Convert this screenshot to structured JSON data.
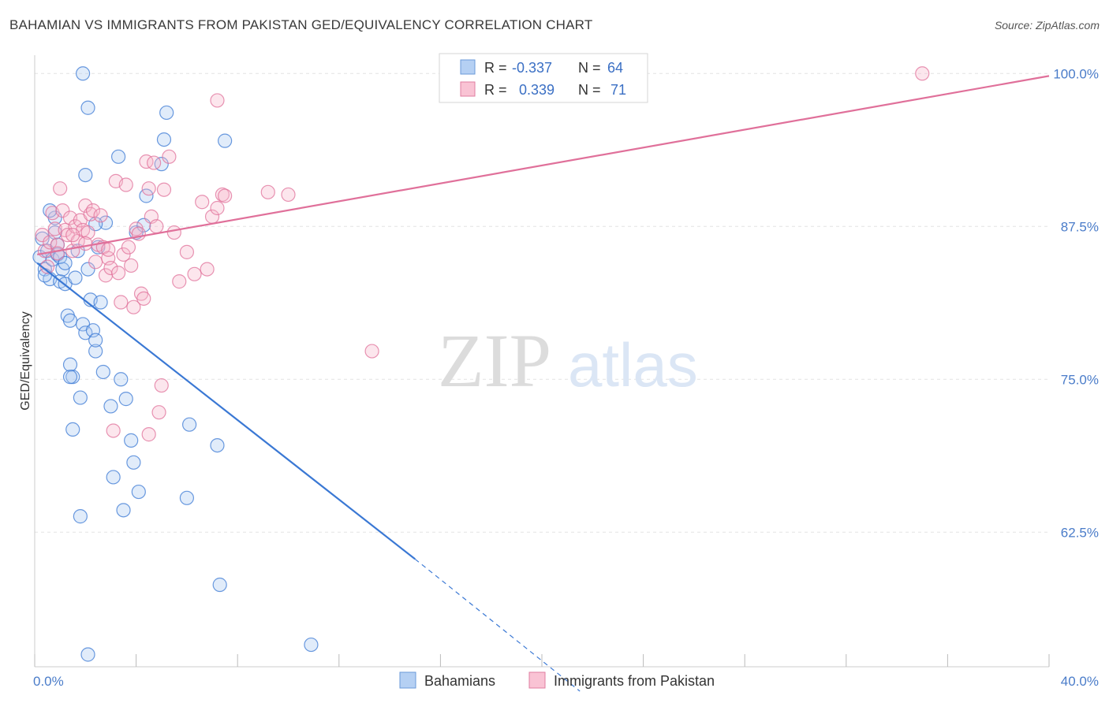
{
  "title": "BAHAMIAN VS IMMIGRANTS FROM PAKISTAN GED/EQUIVALENCY CORRELATION CHART",
  "source": "Source: ZipAtlas.com",
  "watermark": {
    "zip": "ZIP",
    "atlas": "atlas"
  },
  "legend_top": {
    "rows": [
      {
        "r_label": "R =",
        "r_value": "-0.337",
        "n_label": "N =",
        "n_value": "64"
      },
      {
        "r_label": "R =",
        "r_value": "0.339",
        "n_label": "N =",
        "n_value": "71"
      }
    ]
  },
  "legend_bottom": [
    "Bahamians",
    "Immigrants from Pakistan"
  ],
  "chart_data": {
    "type": "scatter",
    "ylabel": "GED/Equivalency",
    "xlabel": "",
    "xlim": [
      0,
      40
    ],
    "ylim": [
      51.5,
      101.5
    ],
    "x_tick_labels": [
      {
        "value": 0,
        "label": "0.0%"
      },
      {
        "value": 40,
        "label": "40.0%"
      }
    ],
    "y_tick_labels": [
      {
        "value": 62.5,
        "label": "62.5%"
      },
      {
        "value": 75.0,
        "label": "75.0%"
      },
      {
        "value": 87.5,
        "label": "87.5%"
      },
      {
        "value": 100.0,
        "label": "100.0%"
      }
    ],
    "colors": {
      "bahamians": "#3a78d4",
      "bahamians_fill": "#a9c8f0",
      "pakistan": "#e0709a",
      "pakistan_fill": "#f7b8cc"
    },
    "series": [
      {
        "name": "Bahamians",
        "trend": {
          "x": [
            0.1,
            15.0
          ],
          "y": [
            84.5,
            60.3
          ],
          "dashed_to": [
            21.5,
            49.5
          ]
        },
        "points": [
          [
            0.2,
            85.0
          ],
          [
            0.3,
            86.5
          ],
          [
            0.4,
            84.0
          ],
          [
            0.5,
            85.5
          ],
          [
            0.6,
            83.2
          ],
          [
            0.7,
            84.8
          ],
          [
            0.8,
            88.2
          ],
          [
            0.9,
            86.0
          ],
          [
            0.6,
            88.8
          ],
          [
            0.9,
            85.2
          ],
          [
            1.0,
            83.0
          ],
          [
            1.1,
            84.0
          ],
          [
            1.2,
            82.8
          ],
          [
            1.3,
            80.2
          ],
          [
            1.4,
            79.8
          ],
          [
            1.4,
            76.2
          ],
          [
            1.5,
            75.2
          ],
          [
            1.6,
            83.3
          ],
          [
            1.7,
            85.5
          ],
          [
            1.8,
            73.5
          ],
          [
            1.9,
            79.5
          ],
          [
            2.0,
            78.8
          ],
          [
            2.1,
            84.0
          ],
          [
            2.2,
            81.5
          ],
          [
            2.4,
            77.3
          ],
          [
            2.5,
            85.8
          ],
          [
            2.6,
            81.3
          ],
          [
            2.3,
            79.0
          ],
          [
            2.4,
            78.2
          ],
          [
            2.7,
            75.6
          ],
          [
            2.8,
            87.8
          ],
          [
            3.0,
            72.8
          ],
          [
            3.1,
            67.0
          ],
          [
            3.3,
            93.2
          ],
          [
            3.4,
            75.0
          ],
          [
            3.5,
            64.3
          ],
          [
            3.6,
            73.4
          ],
          [
            3.8,
            70.0
          ],
          [
            3.9,
            68.2
          ],
          [
            4.0,
            87.0
          ],
          [
            4.1,
            65.8
          ],
          [
            4.4,
            90.0
          ],
          [
            4.3,
            87.6
          ],
          [
            5.0,
            92.6
          ],
          [
            5.1,
            94.6
          ],
          [
            5.2,
            96.8
          ],
          [
            6.1,
            71.3
          ],
          [
            6.0,
            65.3
          ],
          [
            7.2,
            69.6
          ],
          [
            7.3,
            58.2
          ],
          [
            7.5,
            94.5
          ],
          [
            1.5,
            70.9
          ],
          [
            1.4,
            75.2
          ],
          [
            1.8,
            63.8
          ],
          [
            2.1,
            97.2
          ],
          [
            1.9,
            100.0
          ],
          [
            2.1,
            52.5
          ],
          [
            10.9,
            53.3
          ],
          [
            2.0,
            91.7
          ],
          [
            2.4,
            87.7
          ],
          [
            1.0,
            85.0
          ],
          [
            0.4,
            83.5
          ],
          [
            1.2,
            84.5
          ],
          [
            0.8,
            87.0
          ]
        ]
      },
      {
        "name": "Immigrants from Pakistan",
        "trend": {
          "x": [
            0.1,
            40.0
          ],
          "y": [
            85.2,
            99.8
          ]
        },
        "points": [
          [
            0.3,
            86.8
          ],
          [
            0.4,
            85.5
          ],
          [
            0.5,
            84.2
          ],
          [
            0.6,
            86.2
          ],
          [
            0.7,
            88.6
          ],
          [
            0.8,
            87.3
          ],
          [
            0.9,
            86.0
          ],
          [
            1.0,
            90.6
          ],
          [
            1.1,
            88.8
          ],
          [
            1.2,
            87.2
          ],
          [
            1.3,
            86.8
          ],
          [
            1.4,
            88.2
          ],
          [
            1.5,
            85.5
          ],
          [
            1.6,
            87.5
          ],
          [
            1.7,
            86.3
          ],
          [
            1.8,
            88.0
          ],
          [
            1.9,
            87.2
          ],
          [
            2.0,
            89.2
          ],
          [
            2.1,
            87.0
          ],
          [
            2.2,
            88.5
          ],
          [
            2.3,
            88.8
          ],
          [
            2.4,
            84.6
          ],
          [
            2.5,
            86.0
          ],
          [
            2.6,
            88.4
          ],
          [
            2.7,
            85.8
          ],
          [
            2.8,
            83.5
          ],
          [
            2.9,
            84.9
          ],
          [
            3.0,
            84.1
          ],
          [
            3.1,
            70.8
          ],
          [
            3.2,
            91.2
          ],
          [
            3.3,
            83.7
          ],
          [
            3.4,
            81.3
          ],
          [
            3.5,
            85.2
          ],
          [
            3.6,
            90.9
          ],
          [
            3.7,
            85.8
          ],
          [
            3.8,
            84.3
          ],
          [
            3.9,
            80.9
          ],
          [
            4.0,
            87.3
          ],
          [
            4.1,
            86.9
          ],
          [
            4.2,
            82.0
          ],
          [
            4.3,
            81.6
          ],
          [
            4.4,
            92.8
          ],
          [
            4.5,
            90.6
          ],
          [
            4.6,
            88.3
          ],
          [
            4.7,
            92.7
          ],
          [
            4.8,
            87.5
          ],
          [
            4.9,
            72.3
          ],
          [
            5.0,
            74.5
          ],
          [
            5.1,
            90.5
          ],
          [
            5.3,
            93.2
          ],
          [
            5.5,
            87.0
          ],
          [
            5.7,
            83.0
          ],
          [
            6.0,
            85.4
          ],
          [
            6.3,
            83.6
          ],
          [
            6.6,
            89.5
          ],
          [
            6.8,
            84.0
          ],
          [
            7.0,
            88.3
          ],
          [
            7.2,
            89.0
          ],
          [
            7.4,
            90.1
          ],
          [
            7.5,
            90.0
          ],
          [
            7.2,
            97.8
          ],
          [
            9.2,
            90.3
          ],
          [
            10.0,
            90.1
          ],
          [
            13.3,
            77.3
          ],
          [
            16.3,
            100.0
          ],
          [
            35.0,
            100.0
          ],
          [
            4.5,
            70.5
          ],
          [
            2.0,
            86.1
          ],
          [
            1.5,
            86.8
          ],
          [
            0.9,
            85.3
          ],
          [
            2.9,
            85.6
          ]
        ]
      }
    ]
  }
}
